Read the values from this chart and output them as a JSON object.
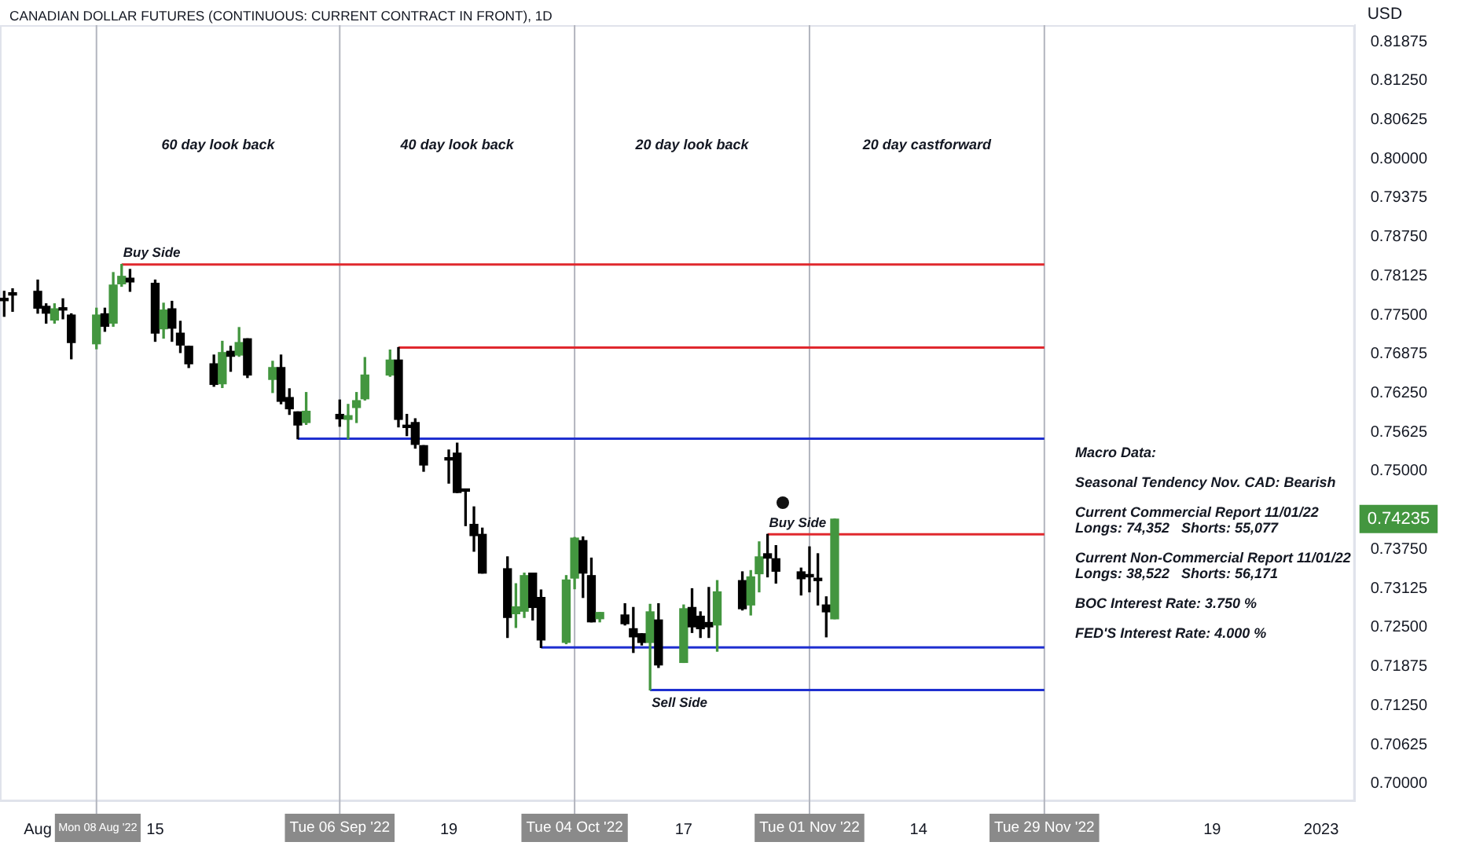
{
  "chart_data": {
    "type": "candlestick",
    "title": "CANADIAN DOLLAR FUTURES (CONTINUOUS: CURRENT CONTRACT IN FRONT), 1D",
    "ylabel": "USD",
    "x": [
      "2022-07-28",
      "2022-07-29",
      "2022-08-01",
      "2022-08-02",
      "2022-08-03",
      "2022-08-04",
      "2022-08-05",
      "2022-08-08",
      "2022-08-09",
      "2022-08-10",
      "2022-08-11",
      "2022-08-12",
      "2022-08-15",
      "2022-08-16",
      "2022-08-17",
      "2022-08-18",
      "2022-08-19",
      "2022-08-22",
      "2022-08-23",
      "2022-08-24",
      "2022-08-25",
      "2022-08-26",
      "2022-08-29",
      "2022-08-30",
      "2022-08-31",
      "2022-09-01",
      "2022-09-02",
      "2022-09-06",
      "2022-09-07",
      "2022-09-08",
      "2022-09-09",
      "2022-09-12",
      "2022-09-13",
      "2022-09-14",
      "2022-09-15",
      "2022-09-16",
      "2022-09-19",
      "2022-09-20",
      "2022-09-21",
      "2022-09-22",
      "2022-09-23",
      "2022-09-26",
      "2022-09-27",
      "2022-09-28",
      "2022-09-29",
      "2022-09-30",
      "2022-10-03",
      "2022-10-04",
      "2022-10-05",
      "2022-10-06",
      "2022-10-07",
      "2022-10-10",
      "2022-10-11",
      "2022-10-12",
      "2022-10-13",
      "2022-10-14",
      "2022-10-17",
      "2022-10-18",
      "2022-10-19",
      "2022-10-20",
      "2022-10-21",
      "2022-10-24",
      "2022-10-25",
      "2022-10-26",
      "2022-10-27",
      "2022-10-28",
      "2022-10-31",
      "2022-11-01",
      "2022-11-02",
      "2022-11-03",
      "2022-11-04"
    ],
    "ohlc": [
      [
        0.7774,
        0.7788,
        0.7748,
        0.7773
      ],
      [
        0.7782,
        0.7792,
        0.7756,
        0.7782
      ],
      [
        0.7788,
        0.7806,
        0.7753,
        0.7761
      ],
      [
        0.7764,
        0.7768,
        0.7737,
        0.7753
      ],
      [
        0.7742,
        0.7768,
        0.7737,
        0.776
      ],
      [
        0.7761,
        0.7776,
        0.7744,
        0.7758
      ],
      [
        0.775,
        0.7752,
        0.768,
        0.7706
      ],
      [
        0.7704,
        0.7761,
        0.7696,
        0.775
      ],
      [
        0.7752,
        0.7761,
        0.7724,
        0.7732
      ],
      [
        0.7737,
        0.7818,
        0.7732,
        0.7798
      ],
      [
        0.78,
        0.7831,
        0.7796,
        0.7812
      ],
      [
        0.7809,
        0.7823,
        0.7788,
        0.7803
      ],
      [
        0.7801,
        0.7806,
        0.7708,
        0.7721
      ],
      [
        0.7728,
        0.7769,
        0.7713,
        0.7758
      ],
      [
        0.776,
        0.7772,
        0.7708,
        0.7729
      ],
      [
        0.7721,
        0.774,
        0.769,
        0.7702
      ],
      [
        0.77,
        0.77,
        0.7666,
        0.7672
      ],
      [
        0.7672,
        0.7686,
        0.7636,
        0.7639
      ],
      [
        0.764,
        0.7708,
        0.7634,
        0.769
      ],
      [
        0.7692,
        0.77,
        0.766,
        0.7684
      ],
      [
        0.7686,
        0.773,
        0.7684,
        0.7706
      ],
      [
        0.7712,
        0.7712,
        0.765,
        0.7654
      ],
      [
        0.7647,
        0.7676,
        0.7626,
        0.7666
      ],
      [
        0.7666,
        0.7686,
        0.7608,
        0.7612
      ],
      [
        0.7618,
        0.7632,
        0.7591,
        0.76
      ],
      [
        0.7595,
        0.7595,
        0.7552,
        0.7574
      ],
      [
        0.7578,
        0.7626,
        0.7575,
        0.7596
      ],
      [
        0.7591,
        0.7614,
        0.7572,
        0.7584
      ],
      [
        0.7583,
        0.7607,
        0.7552,
        0.7589
      ],
      [
        0.7602,
        0.7626,
        0.7578,
        0.7613
      ],
      [
        0.7616,
        0.7682,
        0.7614,
        0.7654
      ],
      [
        0.7654,
        0.7694,
        0.7652,
        0.7678
      ],
      [
        0.7678,
        0.7698,
        0.7571,
        0.7583
      ],
      [
        0.7571,
        0.7591,
        0.7557,
        0.757
      ],
      [
        0.7578,
        0.7584,
        0.7537,
        0.7543
      ],
      [
        0.7541,
        0.7541,
        0.75,
        0.751
      ],
      [
        0.752,
        0.7534,
        0.7481,
        0.7518
      ],
      [
        0.7529,
        0.7545,
        0.7466,
        0.7466
      ],
      [
        0.7469,
        0.7471,
        0.7413,
        0.7468
      ],
      [
        0.7415,
        0.7443,
        0.7372,
        0.7397
      ],
      [
        0.7399,
        0.7409,
        0.7337,
        0.7337
      ],
      [
        0.7344,
        0.7363,
        0.7234,
        0.7266
      ],
      [
        0.7272,
        0.732,
        0.725,
        0.7283
      ],
      [
        0.7276,
        0.7337,
        0.7266,
        0.7333
      ],
      [
        0.7337,
        0.7337,
        0.7262,
        0.7282
      ],
      [
        0.7298,
        0.731,
        0.7218,
        0.723
      ],
      [
        0.7226,
        0.7333,
        0.7224,
        0.7326
      ],
      [
        0.7329,
        0.7394,
        0.7312,
        0.7393
      ],
      [
        0.7389,
        0.7395,
        0.7298,
        0.7337
      ],
      [
        0.7333,
        0.7361,
        0.7259,
        0.7259
      ],
      [
        0.7264,
        0.7274,
        0.7259,
        0.7274
      ],
      [
        0.727,
        0.7288,
        0.7254,
        0.7256
      ],
      [
        0.7248,
        0.7282,
        0.721,
        0.7235
      ],
      [
        0.724,
        0.724,
        0.7222,
        0.7226
      ],
      [
        0.7226,
        0.7287,
        0.715,
        0.7275
      ],
      [
        0.7262,
        0.7288,
        0.7186,
        0.719
      ],
      [
        0.7194,
        0.7286,
        0.7194,
        0.728
      ],
      [
        0.7282,
        0.7312,
        0.7242,
        0.7251
      ],
      [
        0.7268,
        0.7275,
        0.7234,
        0.7248
      ],
      [
        0.7258,
        0.7314,
        0.7234,
        0.7251
      ],
      [
        0.7254,
        0.7325,
        0.7212,
        0.7307
      ],
      [
        0.7325,
        0.7339,
        0.7278,
        0.728
      ],
      [
        0.7286,
        0.7341,
        0.727,
        0.7331
      ],
      [
        0.7336,
        0.7387,
        0.7307,
        0.7363
      ],
      [
        0.7368,
        0.7399,
        0.7331,
        0.7361
      ],
      [
        0.736,
        0.7381,
        0.7321,
        0.734
      ],
      [
        0.7339,
        0.7345,
        0.7302,
        0.7328
      ],
      [
        0.7332,
        0.7379,
        0.7307,
        0.7331
      ],
      [
        0.7326,
        0.7368,
        0.7286,
        0.7325
      ],
      [
        0.7286,
        0.7299,
        0.7235,
        0.7275
      ],
      [
        0.7264,
        0.74235,
        0.7264,
        0.74235
      ]
    ],
    "colors": [
      "#000000",
      "#000000",
      "#000000",
      "#000000",
      "#43963f",
      "#000000",
      "#000000",
      "#43963f",
      "#000000",
      "#43963f",
      "#43963f",
      "#000000",
      "#000000",
      "#43963f",
      "#000000",
      "#000000",
      "#000000",
      "#000000",
      "#43963f",
      "#000000",
      "#43963f",
      "#000000",
      "#43963f",
      "#000000",
      "#000000",
      "#000000",
      "#43963f",
      "#000000",
      "#43963f",
      "#43963f",
      "#43963f",
      "#43963f",
      "#000000",
      "#000000",
      "#000000",
      "#000000",
      "#000000",
      "#000000",
      "#000000",
      "#000000",
      "#000000",
      "#000000",
      "#43963f",
      "#43963f",
      "#000000",
      "#000000",
      "#43963f",
      "#43963f",
      "#000000",
      "#000000",
      "#43963f",
      "#000000",
      "#000000",
      "#000000",
      "#43963f",
      "#000000",
      "#43963f",
      "#000000",
      "#000000",
      "#000000",
      "#43963f",
      "#000000",
      "#43963f",
      "#43963f",
      "#000000",
      "#000000",
      "#000000",
      "#000000",
      "#000000",
      "#000000",
      "#43963f"
    ],
    "value_labels": [
      null,
      null,
      null,
      null,
      null,
      null,
      null,
      null,
      null,
      null,
      null,
      null,
      null,
      null,
      null,
      null,
      null,
      null,
      null,
      null,
      null,
      null,
      null,
      null,
      null,
      null,
      null,
      null,
      null,
      null,
      null,
      null,
      null,
      null,
      null,
      null,
      null,
      null,
      null,
      null,
      null,
      null,
      null,
      null,
      null,
      null,
      null,
      null,
      null,
      null,
      null,
      null,
      null,
      null,
      null,
      null,
      null,
      null,
      null,
      null,
      null,
      null,
      null,
      null,
      null,
      null,
      null,
      null,
      null,
      null,
      "0.74235"
    ],
    "series": [
      {
        "type": "line",
        "color": "#e0282e",
        "x": [
          "2022-08-11",
          "2022-11-29"
        ],
        "values": [
          0.7831,
          0.7831
        ]
      },
      {
        "type": "line",
        "color": "#e0282e",
        "x": [
          "2022-09-13",
          "2022-11-29"
        ],
        "values": [
          0.7698,
          0.7698
        ]
      },
      {
        "type": "line",
        "color": "#1f2fd0",
        "x": [
          "2022-09-01",
          "2022-11-29"
        ],
        "values": [
          0.7552,
          0.7552
        ]
      },
      {
        "type": "line",
        "color": "#e0282e",
        "x": [
          "2022-10-27",
          "2022-11-29"
        ],
        "values": [
          0.7399,
          0.7399
        ]
      },
      {
        "type": "line",
        "color": "#1f2fd0",
        "x": [
          "2022-09-30",
          "2022-11-29"
        ],
        "values": [
          0.7218,
          0.7218
        ]
      },
      {
        "type": "line",
        "color": "#1f2fd0",
        "x": [
          "2022-10-13",
          "2022-11-29"
        ],
        "values": [
          0.715,
          0.715
        ]
      }
    ],
    "xlim": [
      "2022-07-27T12:00",
      "2023-01-05"
    ],
    "xticks": [
      {
        "value": "2022-08-01",
        "label": "Aug"
      },
      {
        "value": "2022-08-15",
        "label": "15"
      },
      {
        "value": "2022-09-19",
        "label": "19"
      },
      {
        "value": "2022-10-17",
        "label": "17"
      },
      {
        "value": "2022-11-14",
        "label": "14"
      },
      {
        "value": "2022-12-19",
        "label": "19"
      },
      {
        "value": "2023-01-01",
        "label": "2023"
      }
    ],
    "ylim": [
      0.6972,
      0.8214
    ],
    "yticks": [
      {
        "value": 0.7,
        "label": "0.70000"
      },
      {
        "value": 0.70625,
        "label": "0.70625"
      },
      {
        "value": 0.7125,
        "label": "0.71250"
      },
      {
        "value": 0.71875,
        "label": "0.71875"
      },
      {
        "value": 0.725,
        "label": "0.72500"
      },
      {
        "value": 0.73125,
        "label": "0.73125"
      },
      {
        "value": 0.7375,
        "label": "0.73750"
      },
      {
        "value": 0.75,
        "label": "0.75000"
      },
      {
        "value": 0.75625,
        "label": "0.75625"
      },
      {
        "value": 0.7625,
        "label": "0.76250"
      },
      {
        "value": 0.76875,
        "label": "0.76875"
      },
      {
        "value": 0.775,
        "label": "0.77500"
      },
      {
        "value": 0.78125,
        "label": "0.78125"
      },
      {
        "value": 0.7875,
        "label": "0.78750"
      },
      {
        "value": 0.79375,
        "label": "0.79375"
      },
      {
        "value": 0.8,
        "label": "0.80000"
      },
      {
        "value": 0.80625,
        "label": "0.80625"
      },
      {
        "value": 0.8125,
        "label": "0.81250"
      },
      {
        "value": 0.81875,
        "label": "0.81875"
      }
    ],
    "ref_lines": [
      {
        "axis": "x",
        "value": "2022-08-08",
        "label": "Mon 08 Aug '22",
        "color": "#b2b5be",
        "line_style": "solid"
      },
      {
        "axis": "x",
        "value": "2022-09-06",
        "label": "Tue 06 Sep '22",
        "color": "#b2b5be",
        "line_style": "solid"
      },
      {
        "axis": "x",
        "value": "2022-10-04",
        "label": "Tue 04 Oct '22",
        "color": "#b2b5be",
        "line_style": "solid"
      },
      {
        "axis": "x",
        "value": "2022-11-01",
        "label": "Tue 01 Nov '22",
        "color": "#b2b5be",
        "line_style": "solid"
      },
      {
        "axis": "x",
        "value": "2022-11-29",
        "label": "Tue 29 Nov '22",
        "color": "#b2b5be",
        "line_style": "solid"
      }
    ],
    "annotations": [
      "60 day look back",
      "40 day look back",
      "20 day look back",
      "20 day castforward",
      {
        "text": "Buy Side",
        "x": "2022-08-11",
        "y": 0.7831
      },
      {
        "text": "Buy Side",
        "x": "2022-10-27",
        "y": 0.7399
      },
      {
        "text": "Sell Side",
        "x": "2022-10-13",
        "y": 0.715
      },
      "Macro Data:",
      "Seasonal Tendency Nov. CAD: Bearish",
      "Current Commercial Report 11/01/22\nLongs: 74,352   Shorts: 55,077",
      "Current Non-Commercial Report 11/01/22\nLongs: 38,522   Shorts: 56,171",
      "BOC Interest Rate: 3.750 %",
      "FED'S Interest Rate: 4.000 %"
    ],
    "grid": false,
    "legend": false
  }
}
